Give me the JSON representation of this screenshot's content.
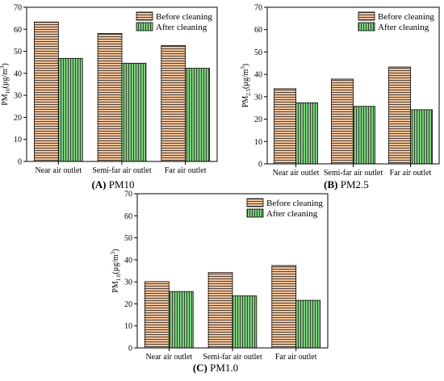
{
  "legend": {
    "before": "Before cleaning",
    "after": "After cleaning"
  },
  "colors": {
    "before": "#f5c49c",
    "after": "#7fcf7f",
    "hatch": "#222222"
  },
  "chart_data": [
    {
      "type": "bar",
      "caption": {
        "letter": "(A)",
        "text": " PM10"
      },
      "ylabel": {
        "base": "PM",
        "sub": "10",
        "unit": "(μg/m",
        "sup": "3",
        "close": ")"
      },
      "categories": [
        "Near air outlet",
        "Semi-far air outlet",
        "Far air outlet"
      ],
      "series": [
        {
          "name": "Before cleaning",
          "values": [
            63.3,
            58.1,
            52.6
          ]
        },
        {
          "name": "After cleaning",
          "values": [
            46.8,
            44.6,
            42.3
          ]
        }
      ],
      "ylim": [
        0,
        70
      ],
      "yticks": [
        "0",
        "10",
        "20",
        "30",
        "40",
        "50",
        "60",
        "70"
      ],
      "legend_position": "top-right"
    },
    {
      "type": "bar",
      "caption": {
        "letter": "(B)",
        "text": " PM2.5"
      },
      "ylabel": {
        "base": "PM",
        "sub": "2.5",
        "unit": "(μg/m",
        "sup": "3",
        "close": ")"
      },
      "categories": [
        "Near air outlet",
        "Semi-far air outlet",
        "Far air outlet"
      ],
      "series": [
        {
          "name": "Before cleaning",
          "values": [
            33.6,
            37.9,
            43.3
          ]
        },
        {
          "name": "After cleaning",
          "values": [
            27.3,
            25.7,
            24.2
          ]
        }
      ],
      "ylim": [
        0,
        70
      ],
      "yticks": [
        "0",
        "10",
        "20",
        "30",
        "40",
        "50",
        "60",
        "70"
      ],
      "legend_position": "top-right"
    },
    {
      "type": "bar",
      "caption": {
        "letter": "(C)",
        "text": " PM1.0"
      },
      "ylabel": {
        "base": "PM",
        "sub": "1.0",
        "unit": "(μg/m",
        "sup": "3",
        "close": ")"
      },
      "categories": [
        "Near air outlet",
        "Semi-far air outlet",
        "Far air outlet"
      ],
      "series": [
        {
          "name": "Before cleaning",
          "values": [
            30.1,
            34.2,
            37.4
          ]
        },
        {
          "name": "After cleaning",
          "values": [
            25.6,
            23.6,
            21.6
          ]
        }
      ],
      "ylim": [
        0,
        70
      ],
      "yticks": [
        "0",
        "10",
        "20",
        "30",
        "40",
        "50",
        "60",
        "70"
      ],
      "legend_position": "top-right"
    }
  ]
}
